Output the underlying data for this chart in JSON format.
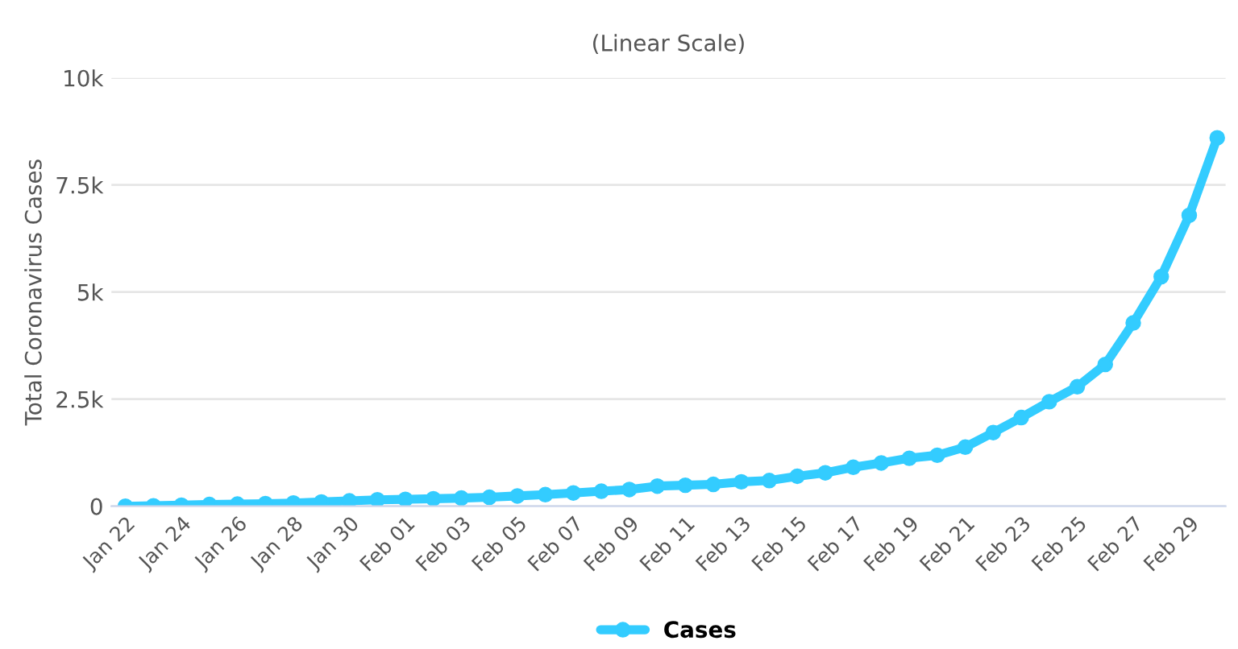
{
  "chart_data": {
    "type": "line",
    "title": "(Linear Scale)",
    "ylabel": "Total Coronavirus Cases",
    "categories": [
      "Jan 22",
      null,
      "Jan 24",
      null,
      "Jan 26",
      null,
      "Jan 28",
      null,
      "Jan 30",
      null,
      "Feb 01",
      null,
      "Feb 03",
      null,
      "Feb 05",
      null,
      "Feb 07",
      null,
      "Feb 09",
      null,
      "Feb 11",
      null,
      "Feb 13",
      null,
      "Feb 15",
      null,
      "Feb 17",
      null,
      "Feb 19",
      null,
      "Feb 21",
      null,
      "Feb 23",
      null,
      "Feb 25",
      null,
      "Feb 27",
      null,
      "Feb 29",
      null
    ],
    "series": [
      {
        "name": "Cases",
        "color": "#33ccff",
        "values": [
          0,
          10,
          25,
          40,
          50,
          60,
          75,
          100,
          125,
          150,
          160,
          175,
          190,
          210,
          240,
          270,
          310,
          350,
          390,
          470,
          490,
          510,
          570,
          600,
          700,
          780,
          910,
          1010,
          1120,
          1190,
          1380,
          1720,
          2070,
          2440,
          2790,
          3310,
          4280,
          5360,
          6790,
          8600
        ]
      }
    ],
    "ylim": [
      0,
      10000
    ],
    "yticks": [
      {
        "value": 0,
        "label": "0"
      },
      {
        "value": 2500,
        "label": "2.5k"
      },
      {
        "value": 5000,
        "label": "5k"
      },
      {
        "value": 7500,
        "label": "7.5k"
      },
      {
        "value": 10000,
        "label": "10k"
      }
    ],
    "grid": "y",
    "legend": "bottom",
    "marker": "circle",
    "line_style": "solid"
  }
}
